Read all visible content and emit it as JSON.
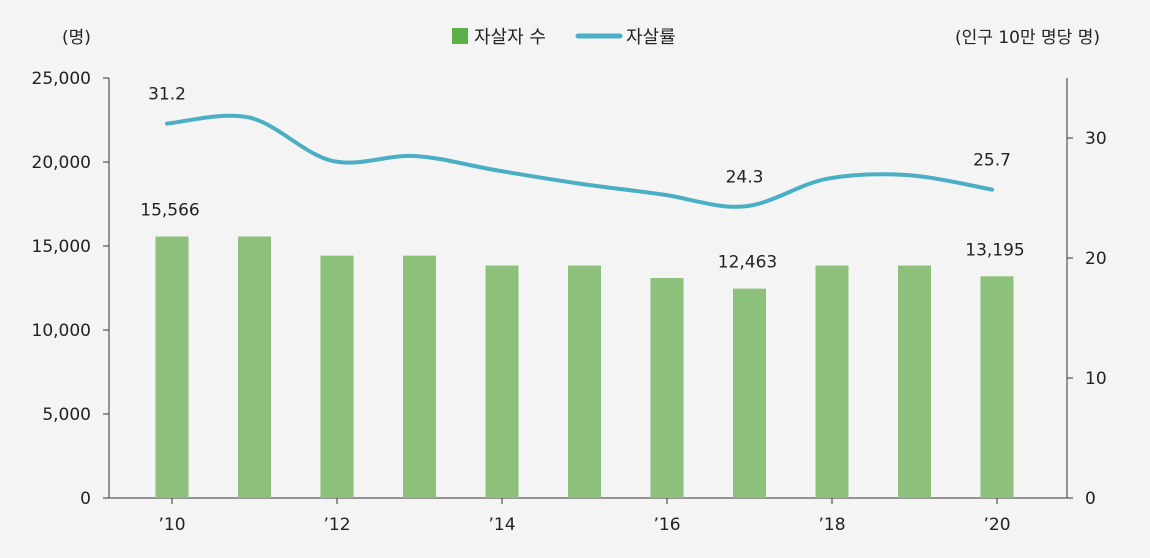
{
  "chart_data": {
    "type": "bar+line",
    "categories": [
      "'10",
      "'11",
      "'12",
      "'13",
      "'14",
      "'15",
      "'16",
      "'17",
      "'18",
      "'19",
      "'20"
    ],
    "x_tick_labels": [
      "’10",
      "’12",
      "’14",
      "’16",
      "’18",
      "’20"
    ],
    "series": [
      {
        "name": "자살자 수",
        "type": "bar",
        "axis": "left",
        "color": "#8dc07a",
        "values": [
          15566,
          15566,
          14427,
          14427,
          13836,
          13836,
          13092,
          12463,
          13836,
          13836,
          13195
        ]
      },
      {
        "name": "자살률",
        "type": "line",
        "axis": "right",
        "color": "#4aaec4",
        "values": [
          31.2,
          31.7,
          28.1,
          28.5,
          27.3,
          26.2,
          25.3,
          24.3,
          26.6,
          26.9,
          25.7
        ]
      }
    ],
    "bar_labels": [
      {
        "index": 0,
        "text": "15,566"
      },
      {
        "index": 7,
        "text": "12,463"
      },
      {
        "index": 10,
        "text": "13,195"
      }
    ],
    "line_labels": [
      {
        "index": 0,
        "text": "31.2"
      },
      {
        "index": 7,
        "text": "24.3"
      },
      {
        "index": 10,
        "text": "25.7"
      }
    ],
    "left_axis": {
      "unit": "(명)",
      "ylim": [
        0,
        25000
      ],
      "ticks": [
        0,
        5000,
        10000,
        15000,
        20000,
        25000
      ],
      "tick_labels": [
        "0",
        "5,000",
        "10,000",
        "15,000",
        "20,000",
        "25,000"
      ]
    },
    "right_axis": {
      "unit": "(인구 10만 명당 명)",
      "ylim": [
        0,
        35
      ],
      "ticks": [
        0,
        10,
        20,
        30
      ],
      "tick_labels": [
        "0",
        "10",
        "20",
        "30"
      ]
    },
    "legend": {
      "position": "top-center",
      "items": [
        "자살자 수",
        "자살률"
      ],
      "bar_legend_color": "#5bb04a",
      "line_legend_color": "#4aaec4"
    },
    "grid": false
  }
}
